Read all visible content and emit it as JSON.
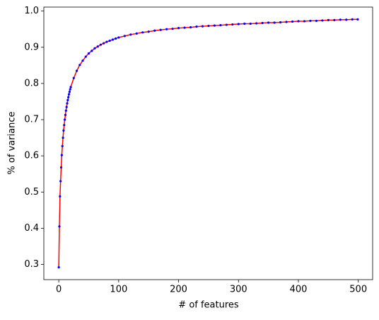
{
  "chart_data": {
    "type": "line",
    "xlabel": "# of features",
    "ylabel": "% of variance",
    "x": [
      0,
      1,
      2,
      3,
      4,
      5,
      6,
      7,
      8,
      9,
      10,
      11,
      12,
      13,
      14,
      15,
      16,
      17,
      18,
      19,
      20,
      25,
      30,
      35,
      40,
      45,
      50,
      55,
      60,
      65,
      70,
      75,
      80,
      85,
      90,
      95,
      100,
      110,
      120,
      130,
      140,
      150,
      160,
      170,
      180,
      190,
      200,
      210,
      220,
      230,
      240,
      250,
      260,
      270,
      280,
      290,
      300,
      310,
      320,
      330,
      340,
      350,
      360,
      370,
      380,
      390,
      400,
      410,
      420,
      430,
      440,
      450,
      460,
      470,
      480,
      490,
      499
    ],
    "series": [
      {
        "color": "#ff0000",
        "marker_color": "#0000ff",
        "values": [
          0.292,
          0.405,
          0.488,
          0.53,
          0.568,
          0.602,
          0.627,
          0.65,
          0.67,
          0.685,
          0.7,
          0.713,
          0.725,
          0.735,
          0.745,
          0.754,
          0.762,
          0.77,
          0.777,
          0.784,
          0.79,
          0.815,
          0.835,
          0.851,
          0.863,
          0.874,
          0.883,
          0.89,
          0.897,
          0.902,
          0.907,
          0.911,
          0.915,
          0.918,
          0.921,
          0.924,
          0.927,
          0.931,
          0.935,
          0.938,
          0.941,
          0.943,
          0.946,
          0.948,
          0.95,
          0.951,
          0.953,
          0.954,
          0.955,
          0.957,
          0.958,
          0.959,
          0.96,
          0.961,
          0.962,
          0.963,
          0.964,
          0.965,
          0.965,
          0.966,
          0.967,
          0.968,
          0.968,
          0.969,
          0.97,
          0.971,
          0.972,
          0.972,
          0.973,
          0.973,
          0.974,
          0.975,
          0.975,
          0.976,
          0.976,
          0.977,
          0.977
        ]
      }
    ],
    "xlim": [
      -24.95,
      523.95
    ],
    "xticks": [
      0,
      100,
      200,
      300,
      400,
      500
    ],
    "ylim": [
      0.258,
      1.011
    ],
    "yticks": [
      0.3,
      0.4,
      0.5,
      0.6,
      0.7,
      0.8,
      0.9,
      {
        "value": 1,
        "label": "1.0"
      }
    ]
  }
}
